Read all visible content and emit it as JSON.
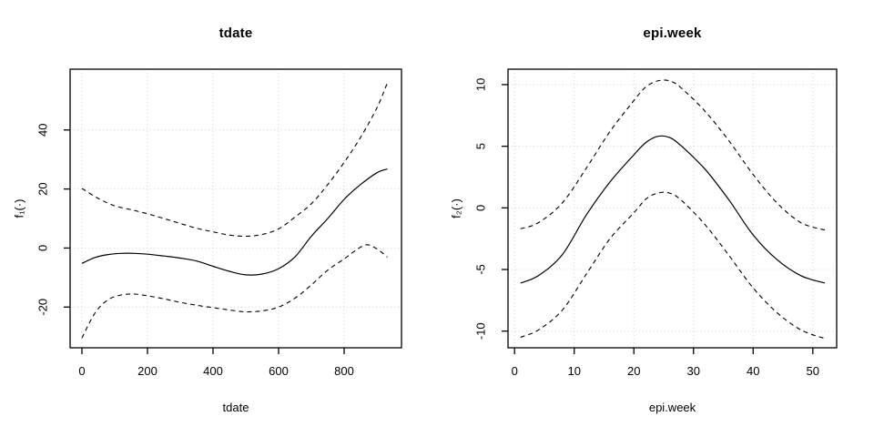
{
  "window": {
    "background": "#ffffff"
  },
  "colors": {
    "foreground": "#000000",
    "grid": "#d3d3d3",
    "background": "#ffffff"
  },
  "chart_data": [
    {
      "type": "line",
      "title": "tdate",
      "xlabel": "tdate",
      "ylabel": "f₁(·)",
      "xlim": [
        -36,
        975
      ],
      "ylim": [
        -33.8,
        60.6
      ],
      "xticks": [
        0,
        200,
        400,
        600,
        800
      ],
      "yticks": [
        -20,
        0,
        20,
        40
      ],
      "grid": "dotted-lightgray",
      "legend": "none",
      "series": [
        {
          "name": "fit",
          "style": "solid",
          "points": [
            [
              0,
              -5.2
            ],
            [
              40,
              -3.2
            ],
            [
              80,
              -2.2
            ],
            [
              120,
              -1.8
            ],
            [
              160,
              -1.8
            ],
            [
              200,
              -2.1
            ],
            [
              250,
              -2.7
            ],
            [
              300,
              -3.4
            ],
            [
              350,
              -4.4
            ],
            [
              400,
              -6.2
            ],
            [
              450,
              -7.9
            ],
            [
              500,
              -9.1
            ],
            [
              550,
              -8.8
            ],
            [
              600,
              -7.0
            ],
            [
              650,
              -3.0
            ],
            [
              700,
              4.0
            ],
            [
              750,
              10.0
            ],
            [
              800,
              16.5
            ],
            [
              850,
              21.5
            ],
            [
              900,
              25.5
            ],
            [
              932,
              26.8
            ]
          ]
        },
        {
          "name": "upper-ci",
          "style": "dashed",
          "points": [
            [
              0,
              20.2
            ],
            [
              50,
              16.8
            ],
            [
              100,
              14.3
            ],
            [
              150,
              13.0
            ],
            [
              200,
              11.6
            ],
            [
              250,
              10.0
            ],
            [
              300,
              8.3
            ],
            [
              350,
              6.7
            ],
            [
              400,
              5.5
            ],
            [
              450,
              4.4
            ],
            [
              500,
              4.0
            ],
            [
              550,
              4.6
            ],
            [
              600,
              6.5
            ],
            [
              650,
              10.5
            ],
            [
              700,
              15.0
            ],
            [
              750,
              21.5
            ],
            [
              800,
              29.0
            ],
            [
              850,
              37.5
            ],
            [
              900,
              47.5
            ],
            [
              932,
              56.0
            ]
          ]
        },
        {
          "name": "lower-ci",
          "style": "dashed",
          "points": [
            [
              0,
              -30.5
            ],
            [
              40,
              -22.0
            ],
            [
              80,
              -17.5
            ],
            [
              120,
              -15.9
            ],
            [
              160,
              -15.6
            ],
            [
              200,
              -16.2
            ],
            [
              250,
              -17.2
            ],
            [
              300,
              -18.4
            ],
            [
              350,
              -19.4
            ],
            [
              400,
              -20.2
            ],
            [
              450,
              -21.0
            ],
            [
              500,
              -21.6
            ],
            [
              550,
              -21.3
            ],
            [
              600,
              -20.0
            ],
            [
              650,
              -17.0
            ],
            [
              700,
              -12.5
            ],
            [
              750,
              -7.5
            ],
            [
              800,
              -3.7
            ],
            [
              830,
              -1.2
            ],
            [
              867,
              1.1
            ],
            [
              900,
              -0.3
            ],
            [
              932,
              -3.1
            ]
          ]
        }
      ]
    },
    {
      "type": "line",
      "title": "epi.week",
      "xlabel": "epi.week",
      "ylabel": "f₂(·)",
      "xlim": [
        -1.1,
        54.0
      ],
      "ylim": [
        -11.35,
        11.25
      ],
      "xticks": [
        0,
        10,
        20,
        30,
        40,
        50
      ],
      "yticks": [
        -10,
        -5,
        0,
        5,
        10
      ],
      "grid": "dotted-lightgray",
      "legend": "none",
      "series": [
        {
          "name": "fit",
          "style": "solid",
          "points": [
            [
              1,
              -6.1
            ],
            [
              4,
              -5.5
            ],
            [
              8,
              -3.8
            ],
            [
              12,
              -0.6
            ],
            [
              16,
              2.1
            ],
            [
              20,
              4.3
            ],
            [
              22,
              5.3
            ],
            [
              24,
              5.8
            ],
            [
              26,
              5.7
            ],
            [
              28,
              5.0
            ],
            [
              32,
              3.1
            ],
            [
              36,
              0.6
            ],
            [
              40,
              -2.2
            ],
            [
              44,
              -4.2
            ],
            [
              48,
              -5.5
            ],
            [
              52,
              -6.1
            ]
          ]
        },
        {
          "name": "upper-ci",
          "style": "dashed",
          "points": [
            [
              1,
              -1.7
            ],
            [
              4,
              -1.2
            ],
            [
              8,
              0.4
            ],
            [
              12,
              3.2
            ],
            [
              16,
              6.2
            ],
            [
              20,
              8.7
            ],
            [
              22,
              9.8
            ],
            [
              24,
              10.3
            ],
            [
              26,
              10.3
            ],
            [
              28,
              9.7
            ],
            [
              32,
              7.8
            ],
            [
              36,
              5.4
            ],
            [
              40,
              2.7
            ],
            [
              44,
              0.4
            ],
            [
              48,
              -1.2
            ],
            [
              52,
              -1.8
            ]
          ]
        },
        {
          "name": "lower-ci",
          "style": "dashed",
          "points": [
            [
              1,
              -10.5
            ],
            [
              4,
              -9.9
            ],
            [
              8,
              -8.3
            ],
            [
              12,
              -5.4
            ],
            [
              16,
              -2.5
            ],
            [
              20,
              -0.4
            ],
            [
              22,
              0.7
            ],
            [
              24,
              1.2
            ],
            [
              26,
              1.2
            ],
            [
              28,
              0.6
            ],
            [
              32,
              -1.4
            ],
            [
              36,
              -3.9
            ],
            [
              40,
              -6.5
            ],
            [
              44,
              -8.5
            ],
            [
              48,
              -9.9
            ],
            [
              52,
              -10.6
            ]
          ]
        }
      ]
    }
  ]
}
